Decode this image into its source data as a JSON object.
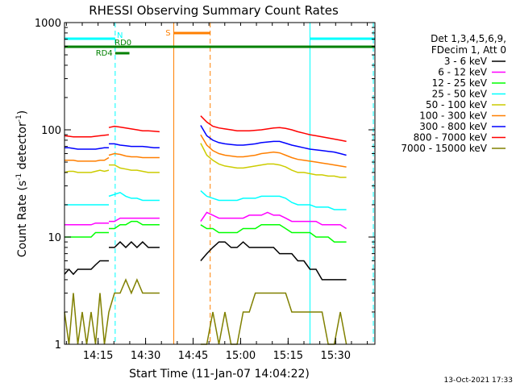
{
  "chart_data": {
    "type": "line",
    "title": "RHESSI Observing Summary Count Rates",
    "xlabel": "Start Time (11-Jan-07 14:04:22)",
    "ylabel_main": "Count Rate (s",
    "ylabel_sup1": "-1",
    "ylabel_mid": " detector",
    "ylabel_sup2": "-1",
    "ylabel_end": ")",
    "yscale": "log",
    "ylim": [
      1,
      1000
    ],
    "xlim_minutes": [
      0,
      98
    ],
    "x_tick_labels": [
      {
        "label": "14:15",
        "minute": 10.6
      },
      {
        "label": "14:30",
        "minute": 25.6
      },
      {
        "label": "14:45",
        "minute": 40.6
      },
      {
        "label": "15:00",
        "minute": 55.6
      },
      {
        "label": "15:15",
        "minute": 70.6
      },
      {
        "label": "15:30",
        "minute": 85.6
      }
    ],
    "y_tick_labels": [
      {
        "label": "1000",
        "value": 1000
      },
      {
        "label": "100",
        "value": 100
      },
      {
        "label": "10",
        "value": 10
      },
      {
        "label": "1",
        "value": 1
      }
    ],
    "legend": {
      "header1": "Det 1,3,4,5,6,9,",
      "header2": "FDecim 1, Att 0",
      "placement": "right"
    },
    "series": [
      {
        "name": "3 - 6 keV",
        "color": "#000000",
        "value_segments": [
          [
            4.5,
            5,
            4.5,
            5,
            5,
            5,
            5,
            5.5,
            6,
            6,
            6
          ],
          [
            8,
            8,
            9,
            8,
            9,
            8,
            9,
            8,
            8,
            8
          ],
          [
            6,
            7,
            8,
            9,
            9,
            8,
            8,
            9,
            8,
            8,
            8,
            8,
            8,
            7,
            7,
            7,
            6,
            6,
            5,
            5,
            4,
            4,
            4,
            4,
            4
          ]
        ]
      },
      {
        "name": "6 - 12 keV",
        "color": "#ff00ff",
        "value_segments": [
          [
            13,
            13,
            13,
            13,
            13,
            13,
            13,
            13.5,
            13.5,
            13.5,
            13.5
          ],
          [
            14,
            14,
            15,
            15,
            15,
            15,
            15,
            15,
            15,
            15
          ],
          [
            14,
            17,
            16,
            15,
            15,
            15,
            15,
            15,
            16,
            16,
            16,
            17,
            16,
            16,
            15,
            14,
            14,
            14,
            14,
            14,
            13,
            13,
            13,
            13,
            12
          ]
        ]
      },
      {
        "name": "12 - 25 keV",
        "color": "#00ff00",
        "value_segments": [
          [
            10,
            10,
            10,
            10,
            10,
            10,
            10,
            11,
            11,
            11,
            11
          ],
          [
            12,
            12,
            13,
            13,
            14,
            14,
            13,
            13,
            13,
            13
          ],
          [
            13,
            12,
            12,
            11,
            11,
            11,
            11,
            12,
            12,
            12,
            13,
            13,
            13,
            13,
            12,
            11,
            11,
            11,
            11,
            10,
            10,
            10,
            9,
            9,
            9
          ]
        ]
      },
      {
        "name": "25 - 50 keV",
        "color": "#00ffff",
        "value_segments": [
          [
            20,
            20,
            20,
            20,
            20,
            20,
            20,
            20,
            20,
            20,
            20
          ],
          [
            24,
            25,
            26,
            24,
            23,
            23,
            22,
            22,
            22,
            22
          ],
          [
            27,
            24,
            23,
            22,
            22,
            22,
            22,
            23,
            23,
            23,
            24,
            24,
            24,
            24,
            23,
            21,
            20,
            20,
            20,
            19,
            19,
            19,
            18,
            18,
            18
          ]
        ]
      },
      {
        "name": "50 - 100 keV",
        "color": "#cccc00",
        "value_segments": [
          [
            40,
            41,
            41,
            40,
            40,
            40,
            40,
            41,
            42,
            41,
            42
          ],
          [
            47,
            47,
            44,
            43,
            42,
            42,
            41,
            40,
            40,
            40
          ],
          [
            75,
            58,
            52,
            48,
            46,
            45,
            44,
            44,
            45,
            46,
            47,
            48,
            48,
            47,
            45,
            42,
            40,
            40,
            39,
            38,
            38,
            37,
            37,
            36,
            36
          ]
        ]
      },
      {
        "name": "100 - 300 keV",
        "color": "#ff7f00",
        "value_segments": [
          [
            52,
            52,
            52,
            51,
            51,
            51,
            51,
            51,
            52,
            52,
            55
          ],
          [
            58,
            60,
            59,
            57,
            56,
            56,
            55,
            55,
            55,
            55
          ],
          [
            90,
            72,
            64,
            60,
            58,
            57,
            56,
            56,
            57,
            58,
            60,
            61,
            62,
            61,
            58,
            55,
            53,
            52,
            51,
            50,
            49,
            48,
            47,
            46,
            45
          ]
        ]
      },
      {
        "name": "300 - 800 keV",
        "color": "#0000ff",
        "value_segments": [
          [
            68,
            68,
            67,
            66,
            66,
            66,
            66,
            66,
            67,
            68,
            68
          ],
          [
            74,
            74,
            72,
            71,
            70,
            70,
            70,
            69,
            68,
            68
          ],
          [
            110,
            88,
            80,
            76,
            74,
            73,
            72,
            72,
            73,
            74,
            76,
            77,
            78,
            78,
            75,
            72,
            70,
            68,
            66,
            65,
            64,
            63,
            62,
            60,
            58
          ]
        ]
      },
      {
        "name": "800 - 7000 keV",
        "color": "#ff0000",
        "value_segments": [
          [
            88,
            87,
            86,
            86,
            86,
            86,
            86,
            87,
            88,
            89,
            90
          ],
          [
            105,
            108,
            106,
            104,
            102,
            100,
            98,
            98,
            97,
            96
          ],
          [
            135,
            118,
            108,
            104,
            102,
            100,
            98,
            98,
            98,
            99,
            100,
            102,
            104,
            105,
            103,
            100,
            96,
            93,
            90,
            88,
            86,
            84,
            82,
            80,
            78
          ]
        ]
      },
      {
        "name": "7000 - 15000 keV",
        "color": "#808000",
        "value_segments": [
          [
            2,
            1,
            3,
            1,
            2,
            1,
            2,
            1,
            3,
            1,
            2
          ],
          [
            2,
            3,
            3,
            4,
            3,
            4,
            3,
            3,
            3,
            3
          ],
          [
            1,
            1,
            2,
            1,
            2,
            1,
            1,
            2,
            2,
            3,
            3,
            3,
            3,
            3,
            3,
            2,
            2,
            2,
            2,
            2,
            2,
            1,
            1,
            2,
            1
          ]
        ]
      }
    ],
    "segment_ranges_minutes": [
      [
        0,
        14
      ],
      [
        14,
        30
      ],
      [
        43,
        89
      ]
    ],
    "annotations": [
      {
        "label": "N",
        "color": "#00ffff"
      },
      {
        "label": "RD0",
        "color": "#008000"
      },
      {
        "label": "RD4",
        "color": "#008000"
      },
      {
        "label": "S",
        "color": "#ff7f00"
      }
    ],
    "flag_bars": [
      {
        "label": "N",
        "color": "#00ffff",
        "ranges": [
          [
            0,
            16
          ],
          [
            77.5,
            98
          ]
        ]
      },
      {
        "label": "RD0",
        "color": "#008000",
        "ranges": [
          [
            0,
            98
          ]
        ]
      },
      {
        "label": "RD4",
        "color": "#008000",
        "ranges": [
          [
            16,
            20.5
          ]
        ]
      },
      {
        "label": "S",
        "color": "#ff7f00",
        "ranges": [
          [
            34.5,
            46
          ]
        ]
      }
    ],
    "cyan_solid_lines_minutes": [
      0,
      77.5
    ],
    "cyan_dashed_lines_minutes": [
      16,
      97.5
    ],
    "orange_solid_lines_minutes": [
      34.5
    ],
    "orange_dashed_lines_minutes": [
      46
    ],
    "grid": false
  },
  "footer_date": "13-Oct-2021 17:33"
}
